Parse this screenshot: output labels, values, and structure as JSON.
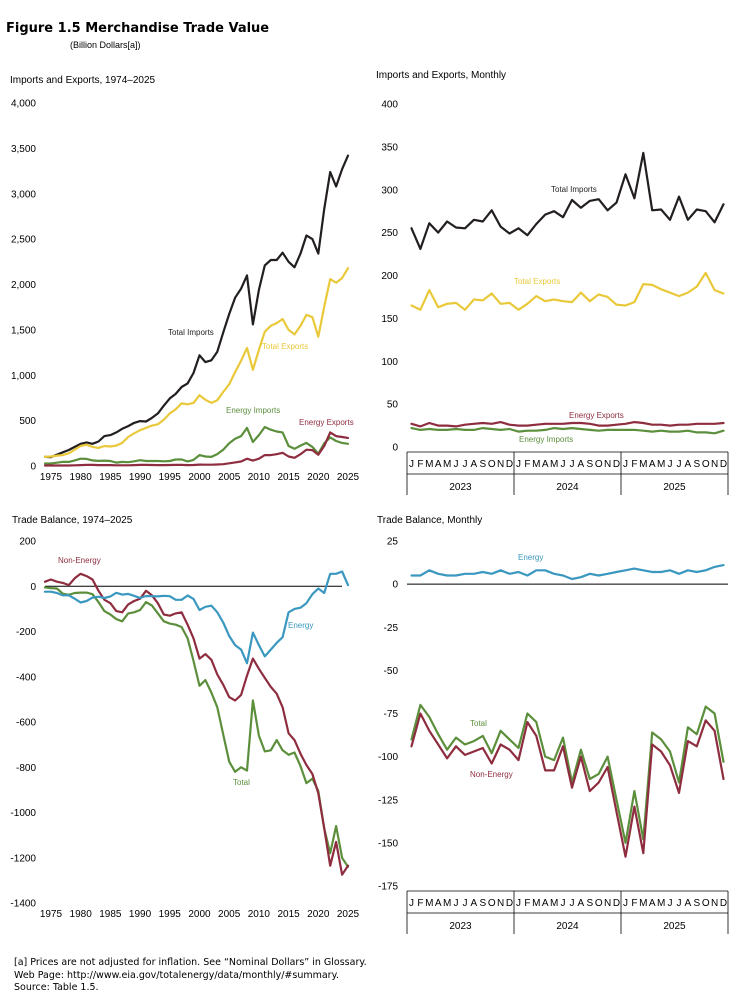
{
  "figure": {
    "title": "Figure 1.5  Merchandise Trade Value",
    "subtitle": "(Billion Dollars[a])"
  },
  "footnotes": [
    "[a] Prices are not adjusted for inflation.  See “Nominal Dollars” in Glossary.",
    "Web Page:  http://www.eia.gov/totalenergy/data/monthly/#summary.",
    "Source:  Table 1.5."
  ],
  "colors": {
    "imports": "#231f20",
    "exports": "#e9c93a",
    "energy_imports": "#5c8f3c",
    "energy_exports": "#8e2d3f",
    "energy_balance": "#3a98c0",
    "total_balance": "#5c8f3c",
    "nonenergy_balance": "#8e2d3f"
  },
  "chart_data": [
    {
      "type": "line",
      "title": "Imports and Exports, 1974–2025",
      "x": [
        1974,
        1975,
        1976,
        1977,
        1978,
        1979,
        1980,
        1981,
        1982,
        1983,
        1984,
        1985,
        1986,
        1987,
        1988,
        1989,
        1990,
        1991,
        1992,
        1993,
        1994,
        1995,
        1996,
        1997,
        1998,
        1999,
        2000,
        2001,
        2002,
        2003,
        2004,
        2005,
        2006,
        2007,
        2008,
        2009,
        2010,
        2011,
        2012,
        2013,
        2014,
        2015,
        2016,
        2017,
        2018,
        2019,
        2020,
        2021,
        2022,
        2023,
        2024,
        2025
      ],
      "ylim": [
        0,
        4000
      ],
      "yticks": [
        0,
        500,
        1000,
        1500,
        2000,
        2500,
        3000,
        3500,
        4000
      ],
      "yticklabels": [
        "0",
        "500",
        "1,000",
        "1,500",
        "2,000",
        "2,500",
        "3,000",
        "3,500",
        "4,000"
      ],
      "xticks": [
        1975,
        1980,
        1985,
        1990,
        1995,
        2000,
        2005,
        2010,
        2015,
        2020,
        2025
      ],
      "series": [
        {
          "name": "Total Imports",
          "color": "#231f20",
          "values": [
            100,
            98,
            124,
            151,
            176,
            210,
            245,
            260,
            245,
            270,
            330,
            340,
            370,
            410,
            440,
            475,
            495,
            490,
            530,
            580,
            665,
            745,
            795,
            870,
            910,
            1025,
            1220,
            1145,
            1165,
            1260,
            1470,
            1675,
            1855,
            1955,
            2100,
            1560,
            1940,
            2210,
            2270,
            2270,
            2350,
            2250,
            2190,
            2340,
            2540,
            2500,
            2340,
            2830,
            3240,
            3080,
            3270,
            3420
          ]
        },
        {
          "name": "Total Exports",
          "color": "#e9c93a",
          "values": [
            100,
            105,
            115,
            120,
            140,
            180,
            220,
            235,
            210,
            200,
            220,
            215,
            225,
            255,
            320,
            360,
            395,
            420,
            445,
            460,
            510,
            580,
            625,
            690,
            680,
            695,
            780,
            730,
            695,
            725,
            815,
            900,
            1035,
            1160,
            1300,
            1060,
            1280,
            1480,
            1545,
            1575,
            1620,
            1500,
            1450,
            1545,
            1665,
            1640,
            1425,
            1755,
            2060,
            2020,
            2070,
            2180
          ]
        },
        {
          "name": "Energy Imports",
          "color": "#5c8f3c",
          "values": [
            28,
            28,
            36,
            46,
            45,
            62,
            80,
            78,
            62,
            56,
            60,
            55,
            37,
            45,
            42,
            52,
            64,
            55,
            55,
            55,
            52,
            55,
            72,
            72,
            51,
            67,
            120,
            105,
            100,
            131,
            180,
            250,
            300,
            330,
            420,
            265,
            340,
            430,
            400,
            380,
            370,
            220,
            190,
            225,
            255,
            210,
            135,
            250,
            315,
            275,
            255,
            245
          ]
        },
        {
          "name": "Energy Exports",
          "color": "#8e2d3f",
          "values": [
            5,
            5,
            5,
            5,
            5,
            8,
            10,
            12,
            12,
            10,
            10,
            10,
            8,
            8,
            8,
            10,
            12,
            12,
            11,
            10,
            10,
            11,
            12,
            12,
            10,
            11,
            15,
            14,
            14,
            16,
            20,
            30,
            40,
            50,
            80,
            60,
            80,
            120,
            120,
            130,
            145,
            105,
            90,
            130,
            180,
            175,
            125,
            220,
            370,
            330,
            320,
            310
          ]
        }
      ]
    },
    {
      "type": "line",
      "title": "Imports and Exports, Monthly",
      "ylim": [
        0,
        400
      ],
      "yticks": [
        0,
        50,
        100,
        150,
        200,
        250,
        300,
        350,
        400
      ],
      "month_labels": [
        "J",
        "F",
        "M",
        "A",
        "M",
        "J",
        "J",
        "A",
        "S",
        "O",
        "N",
        "D",
        "J",
        "F",
        "M",
        "A",
        "M",
        "J",
        "J",
        "A",
        "S",
        "O",
        "N",
        "D",
        "J",
        "F",
        "M",
        "A",
        "M",
        "J",
        "J",
        "A",
        "S",
        "O",
        "N",
        "D"
      ],
      "year_labels": [
        "2023",
        "2024",
        "2025"
      ],
      "series": [
        {
          "name": "Total Imports",
          "color": "#231f20",
          "values": [
            255,
            231,
            261,
            250,
            263,
            256,
            255,
            265,
            263,
            276,
            257,
            249,
            255,
            247,
            260,
            271,
            275,
            268,
            288,
            279,
            287,
            289,
            276,
            285,
            318,
            290,
            343,
            276,
            277,
            265,
            292,
            265,
            277,
            275,
            262,
            283
          ]
        },
        {
          "name": "Total Exports",
          "color": "#e9c93a",
          "values": [
            165,
            160,
            183,
            163,
            167,
            168,
            160,
            172,
            171,
            179,
            167,
            168,
            160,
            167,
            176,
            170,
            172,
            170,
            169,
            180,
            170,
            178,
            175,
            166,
            165,
            169,
            190,
            189,
            184,
            180,
            176,
            180,
            187,
            203,
            183,
            179
          ]
        },
        {
          "name": "Energy Exports",
          "color": "#8e2d3f",
          "values": [
            27,
            24,
            28,
            25,
            25,
            24,
            26,
            27,
            28,
            27,
            29,
            26,
            25,
            25,
            26,
            27,
            27,
            27,
            28,
            28,
            27,
            25,
            25,
            26,
            27,
            29,
            28,
            26,
            26,
            25,
            26,
            26,
            27,
            27,
            27,
            28
          ]
        },
        {
          "name": "Energy Imports",
          "color": "#5c8f3c",
          "values": [
            22,
            20,
            21,
            20,
            20,
            21,
            20,
            20,
            22,
            21,
            20,
            21,
            18,
            19,
            19,
            20,
            22,
            21,
            22,
            21,
            20,
            19,
            20,
            20,
            20,
            20,
            19,
            18,
            19,
            18,
            18,
            19,
            17,
            17,
            16,
            19
          ]
        }
      ]
    },
    {
      "type": "line",
      "title": "Trade Balance, 1974–2025",
      "x": [
        1974,
        1975,
        1976,
        1977,
        1978,
        1979,
        1980,
        1981,
        1982,
        1983,
        1984,
        1985,
        1986,
        1987,
        1988,
        1989,
        1990,
        1991,
        1992,
        1993,
        1994,
        1995,
        1996,
        1997,
        1998,
        1999,
        2000,
        2001,
        2002,
        2003,
        2004,
        2005,
        2006,
        2007,
        2008,
        2009,
        2010,
        2011,
        2012,
        2013,
        2014,
        2015,
        2016,
        2017,
        2018,
        2019,
        2020,
        2021,
        2022,
        2023,
        2024,
        2025
      ],
      "ylim": [
        -1400,
        200
      ],
      "yticks": [
        -1400,
        -1200,
        -1000,
        -800,
        -600,
        -400,
        -200,
        0,
        200
      ],
      "xticks": [
        1975,
        1980,
        1985,
        1990,
        1995,
        2000,
        2005,
        2010,
        2015,
        2020,
        2025
      ],
      "series": [
        {
          "name": "Total",
          "color": "#5c8f3c",
          "values": [
            -5,
            -8,
            -10,
            -33,
            -38,
            -30,
            -28,
            -28,
            -35,
            -70,
            -110,
            -125,
            -145,
            -155,
            -120,
            -115,
            -105,
            -70,
            -85,
            -120,
            -155,
            -165,
            -170,
            -180,
            -230,
            -330,
            -440,
            -415,
            -470,
            -535,
            -655,
            -775,
            -820,
            -800,
            -815,
            -505,
            -660,
            -730,
            -725,
            -680,
            -725,
            -745,
            -735,
            -795,
            -870,
            -850,
            -905,
            -1070,
            -1180,
            -1060,
            -1200,
            -1240
          ]
        },
        {
          "name": "Non-Energy",
          "color": "#8e2d3f",
          "values": [
            20,
            30,
            20,
            15,
            5,
            35,
            55,
            45,
            30,
            -20,
            -60,
            -75,
            -110,
            -115,
            -80,
            -65,
            -55,
            -20,
            -40,
            -75,
            -125,
            -130,
            -120,
            -115,
            -170,
            -230,
            -320,
            -300,
            -325,
            -390,
            -435,
            -490,
            -505,
            -480,
            -395,
            -320,
            -365,
            -405,
            -445,
            -475,
            -535,
            -650,
            -680,
            -740,
            -790,
            -830,
            -915,
            -1070,
            -1235,
            -1130,
            -1275,
            -1235
          ]
        },
        {
          "name": "Energy",
          "color": "#3a98c0",
          "values": [
            -24,
            -24,
            -30,
            -40,
            -40,
            -55,
            -72,
            -65,
            -50,
            -46,
            -52,
            -45,
            -29,
            -37,
            -34,
            -42,
            -52,
            -43,
            -44,
            -45,
            -42,
            -44,
            -60,
            -60,
            -41,
            -56,
            -105,
            -91,
            -86,
            -115,
            -160,
            -220,
            -260,
            -280,
            -340,
            -205,
            -260,
            -310,
            -280,
            -250,
            -225,
            -115,
            -100,
            -95,
            -75,
            -35,
            -10,
            -30,
            55,
            55,
            65,
            5
          ]
        }
      ]
    },
    {
      "type": "line",
      "title": "Trade Balance, Monthly",
      "ylim": [
        -175,
        25
      ],
      "yticks": [
        -175,
        -150,
        -125,
        -100,
        -75,
        -50,
        -25,
        0,
        25
      ],
      "month_labels": [
        "J",
        "F",
        "M",
        "A",
        "M",
        "J",
        "J",
        "A",
        "S",
        "O",
        "N",
        "D",
        "J",
        "F",
        "M",
        "A",
        "M",
        "J",
        "J",
        "A",
        "S",
        "O",
        "N",
        "D",
        "J",
        "F",
        "M",
        "A",
        "M",
        "J",
        "J",
        "A",
        "S",
        "O",
        "N",
        "D"
      ],
      "year_labels": [
        "2023",
        "2024",
        "2025"
      ],
      "series": [
        {
          "name": "Energy",
          "color": "#3a98c0",
          "values": [
            5,
            5,
            8,
            6,
            5,
            5,
            6,
            6,
            7,
            6,
            8,
            6,
            7,
            5,
            8,
            8,
            6,
            5,
            3,
            4,
            6,
            5,
            6,
            7,
            8,
            9,
            8,
            7,
            7,
            8,
            6,
            8,
            7,
            8,
            10,
            11
          ]
        },
        {
          "name": "Total",
          "color": "#5c8f3c",
          "values": [
            -90,
            -70,
            -77,
            -87,
            -96,
            -89,
            -93,
            -91,
            -88,
            -98,
            -85,
            -90,
            -95,
            -75,
            -80,
            -100,
            -102,
            -89,
            -115,
            -96,
            -113,
            -110,
            -100,
            -125,
            -150,
            -120,
            -148,
            -86,
            -90,
            -97,
            -115,
            -83,
            -87,
            -71,
            -75,
            -103
          ]
        },
        {
          "name": "Non-Energy",
          "color": "#8e2d3f",
          "values": [
            -94,
            -75,
            -85,
            -93,
            -101,
            -94,
            -99,
            -97,
            -95,
            -104,
            -93,
            -96,
            -102,
            -80,
            -88,
            -108,
            -108,
            -94,
            -118,
            -100,
            -120,
            -115,
            -106,
            -132,
            -158,
            -129,
            -156,
            -93,
            -97,
            -105,
            -121,
            -91,
            -94,
            -79,
            -85,
            -113
          ]
        }
      ]
    }
  ]
}
